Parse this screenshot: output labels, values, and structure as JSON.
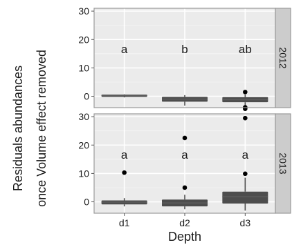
{
  "chart_data": {
    "type": "box",
    "ylabel_line1": "Residuals abundances",
    "ylabel_line2": "once Volume effect removed",
    "xlabel": "Depth",
    "categories": [
      "d1",
      "d2",
      "d3"
    ],
    "y_ticks": [
      "0",
      "10",
      "20",
      "30"
    ],
    "grid": true,
    "panels": [
      {
        "strip_label": "2012",
        "ylim": [
          -4,
          31
        ],
        "letters": [
          "a",
          "b",
          "ab"
        ],
        "boxes": [
          {
            "q1": -0.2,
            "median": 0.3,
            "q3": 0.6,
            "whisker_low": -0.4,
            "whisker_high": 0.7,
            "outliers": []
          },
          {
            "q1": -1.9,
            "median": -1.0,
            "q3": -0.2,
            "whisker_low": -3.3,
            "whisker_high": 0.4,
            "outliers": []
          },
          {
            "q1": -2.1,
            "median": -1.2,
            "q3": -0.3,
            "whisker_low": -3.2,
            "whisker_high": 0.6,
            "outliers": [
              1.5,
              -3.9,
              -4.4
            ]
          }
        ]
      },
      {
        "strip_label": "2013",
        "ylim": [
          -4,
          31
        ],
        "letters": [
          "a",
          "a",
          "a"
        ],
        "boxes": [
          {
            "q1": -0.9,
            "median": -0.1,
            "q3": 0.5,
            "whisker_low": -1.6,
            "whisker_high": 1.3,
            "outliers": [
              10.3
            ]
          },
          {
            "q1": -1.6,
            "median": -0.4,
            "q3": 0.8,
            "whisker_low": -2.6,
            "whisker_high": 2.5,
            "outliers": [
              22.5,
              5.0
            ]
          },
          {
            "q1": -0.6,
            "median": 1.8,
            "q3": 3.6,
            "whisker_low": -3.1,
            "whisker_high": 8.5,
            "outliers": [
              29.5,
              9.9
            ]
          }
        ]
      }
    ]
  },
  "colors": {
    "panel_bg": "#ebebeb",
    "grid": "#ffffff",
    "box_fill": "#4d4d4d",
    "median": "#5c5c5c",
    "strip_bg": "#cccccc",
    "border": "#999999",
    "text": "#1a1a1a",
    "outlier": "#000000"
  }
}
